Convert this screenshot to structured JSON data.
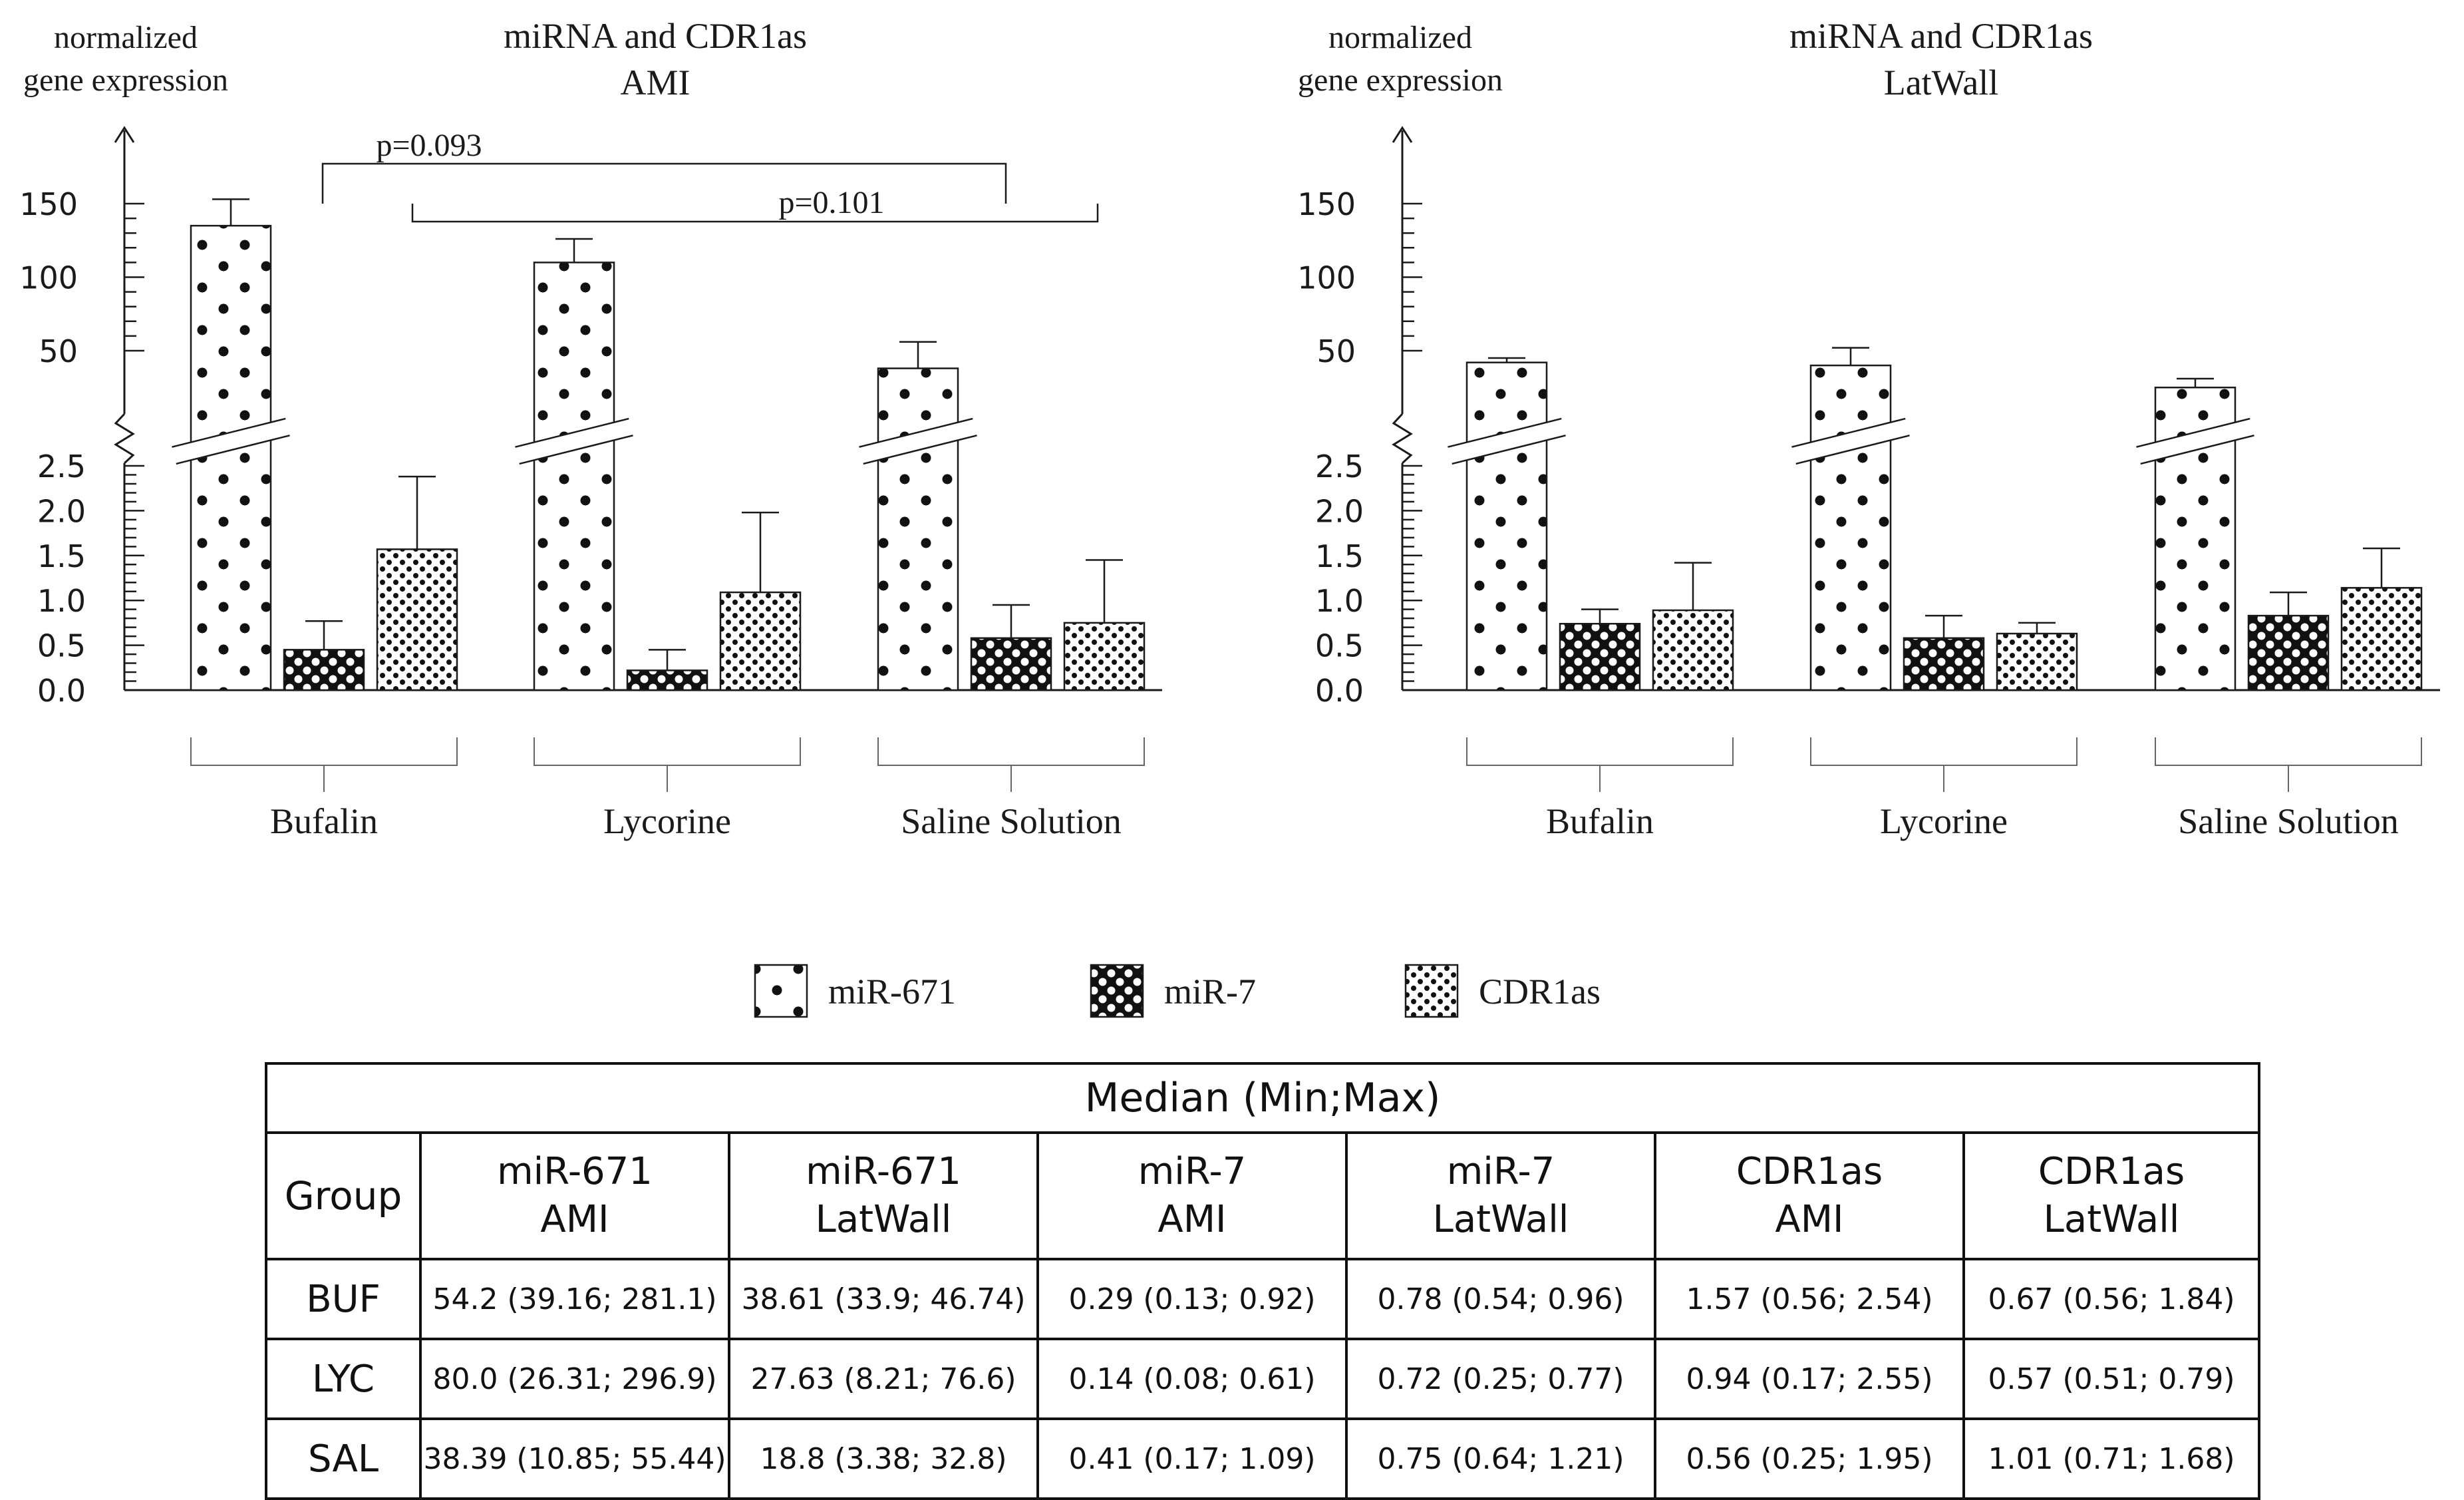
{
  "chart_data": [
    {
      "type": "bar",
      "id": "ami",
      "title": [
        "miRNA and CDR1as",
        "AMI"
      ],
      "ylabel": [
        "normalized",
        "gene expression"
      ],
      "categories": [
        "Bufalin",
        "Lycorine",
        "Saline Solution"
      ],
      "series": [
        {
          "name": "miR-671",
          "values": [
            135,
            110,
            38
          ],
          "error_upper": [
            153,
            126,
            56
          ]
        },
        {
          "name": "miR-7",
          "values": [
            0.45,
            0.22,
            0.58
          ],
          "error_upper": [
            0.77,
            0.45,
            0.95
          ]
        },
        {
          "name": "CDR1as",
          "values": [
            1.57,
            1.09,
            0.75
          ],
          "error_upper": [
            2.38,
            1.98,
            1.45
          ]
        }
      ],
      "y_lower_ticks": [
        "0.0",
        "0.5",
        "1.0",
        "1.5",
        "2.0",
        "2.5"
      ],
      "y_upper_ticks": [
        "50",
        "100",
        "150"
      ],
      "ylim_lower": [
        0,
        2.5
      ],
      "ylim_upper": [
        50,
        150
      ],
      "axis_break": true,
      "annotations": [
        {
          "text": "p=0.093",
          "from": "Bufalin",
          "to": "Saline Solution"
        },
        {
          "text": "p=0.101",
          "from": "Bufalin",
          "to": "Saline Solution"
        }
      ]
    },
    {
      "type": "bar",
      "id": "latwall",
      "title": [
        "miRNA and CDR1as",
        "LatWall"
      ],
      "ylabel": [
        "normalized",
        "gene expression"
      ],
      "categories": [
        "Bufalin",
        "Lycorine",
        "Saline Solution"
      ],
      "series": [
        {
          "name": "miR-671",
          "values": [
            42,
            40,
            25
          ],
          "error_upper": [
            45,
            52,
            31
          ]
        },
        {
          "name": "miR-7",
          "values": [
            0.74,
            0.58,
            0.83
          ],
          "error_upper": [
            0.9,
            0.83,
            1.09
          ]
        },
        {
          "name": "CDR1as",
          "values": [
            0.89,
            0.63,
            1.14
          ],
          "error_upper": [
            1.42,
            0.75,
            1.58
          ]
        }
      ],
      "y_lower_ticks": [
        "0.0",
        "0.5",
        "1.0",
        "1.5",
        "2.0",
        "2.5"
      ],
      "y_upper_ticks": [
        "50",
        "100",
        "150"
      ],
      "ylim_lower": [
        0,
        2.5
      ],
      "ylim_upper": [
        50,
        150
      ],
      "axis_break": true,
      "annotations": []
    }
  ],
  "legend": {
    "items": [
      {
        "name": "miR-671",
        "pattern": "dots-sparse"
      },
      {
        "name": "miR-7",
        "pattern": "circles-dense"
      },
      {
        "name": "CDR1as",
        "pattern": "dots-fine"
      }
    ]
  },
  "table": {
    "title": "Median (Min;Max)",
    "group_header": "Group",
    "columns": [
      {
        "line1": "miR-671",
        "line2": "AMI"
      },
      {
        "line1": "miR-671",
        "line2": "LatWall"
      },
      {
        "line1": "miR-7",
        "line2": "AMI"
      },
      {
        "line1": "miR-7",
        "line2": "LatWall"
      },
      {
        "line1": "CDR1as",
        "line2": "AMI"
      },
      {
        "line1": "CDR1as",
        "line2": "LatWall"
      }
    ],
    "rows": [
      {
        "label": "BUF",
        "cells": [
          "54.2 (39.16; 281.1)",
          "38.61 (33.9; 46.74)",
          "0.29 (0.13; 0.92)",
          "0.78 (0.54; 0.96)",
          "1.57 (0.56; 2.54)",
          "0.67 (0.56; 1.84)"
        ]
      },
      {
        "label": "LYC",
        "cells": [
          "80.0 (26.31;  296.9)",
          "27.63 (8.21; 76.6)",
          "0.14 (0.08;  0.61)",
          "0.72 (0.25; 0.77)",
          "0.94 (0.17;  2.55)",
          "0.57 (0.51; 0.79)"
        ]
      },
      {
        "label": "SAL",
        "cells": [
          "38.39 (10.85; 55.44)",
          "18.8 (3.38; 32.8)",
          "0.41 (0.17; 1.09)",
          "0.75 (0.64; 1.21)",
          "0.56 (0.25; 1.95)",
          "1.01 (0.71; 1.68)"
        ]
      }
    ]
  },
  "colors": {
    "ink": "#1a1a1a",
    "background": "#ffffff"
  }
}
